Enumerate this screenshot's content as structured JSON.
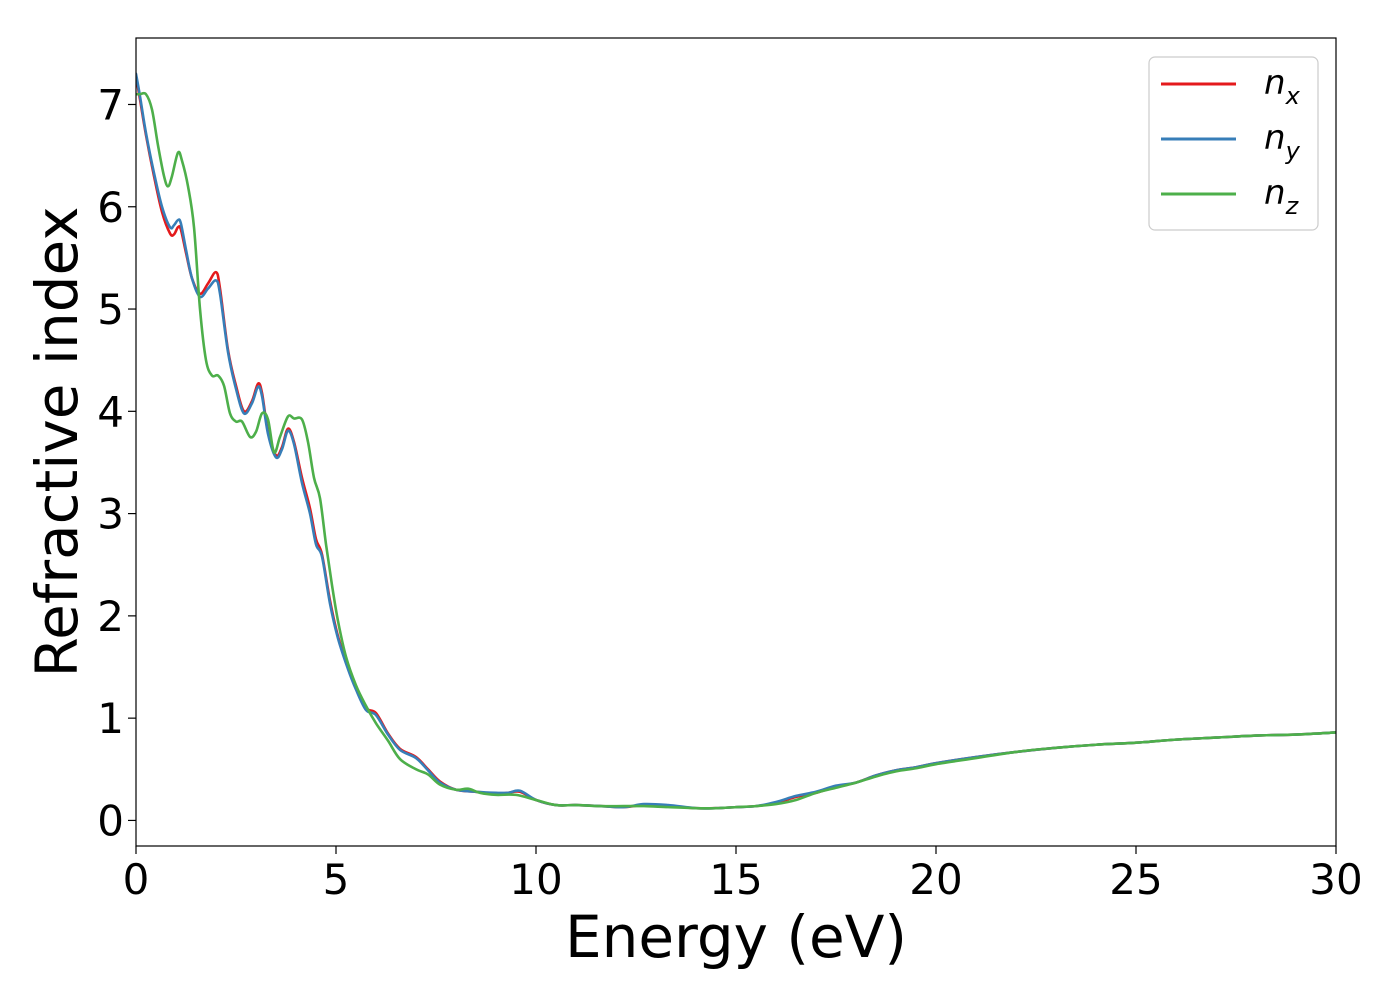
{
  "chart_data": {
    "type": "line",
    "title": "",
    "xlabel": "Energy (eV)",
    "ylabel": "Refractive index",
    "xlim": [
      0,
      30
    ],
    "ylim": [
      -0.25,
      7.65
    ],
    "xticks": [
      0,
      5,
      10,
      15,
      20,
      25,
      30
    ],
    "yticks": [
      0,
      1,
      2,
      3,
      4,
      5,
      6,
      7
    ],
    "grid": false,
    "legend_position": "top-right",
    "series": [
      {
        "name": "n_x",
        "label_base": "n",
        "label_sub": "x",
        "color": "#e41a1c",
        "points": [
          [
            0,
            7.28
          ],
          [
            0.1,
            7.05
          ],
          [
            0.25,
            6.7
          ],
          [
            0.45,
            6.3
          ],
          [
            0.65,
            5.95
          ],
          [
            0.85,
            5.74
          ],
          [
            0.95,
            5.73
          ],
          [
            1.05,
            5.8
          ],
          [
            1.12,
            5.78
          ],
          [
            1.25,
            5.55
          ],
          [
            1.4,
            5.3
          ],
          [
            1.6,
            5.15
          ],
          [
            1.8,
            5.25
          ],
          [
            2.0,
            5.36
          ],
          [
            2.1,
            5.2
          ],
          [
            2.3,
            4.6
          ],
          [
            2.5,
            4.25
          ],
          [
            2.7,
            4.0
          ],
          [
            2.9,
            4.1
          ],
          [
            3.05,
            4.27
          ],
          [
            3.15,
            4.18
          ],
          [
            3.3,
            3.8
          ],
          [
            3.5,
            3.57
          ],
          [
            3.65,
            3.65
          ],
          [
            3.8,
            3.83
          ],
          [
            3.95,
            3.7
          ],
          [
            4.15,
            3.35
          ],
          [
            4.35,
            3.05
          ],
          [
            4.5,
            2.75
          ],
          [
            4.65,
            2.6
          ],
          [
            4.85,
            2.15
          ],
          [
            5.05,
            1.8
          ],
          [
            5.3,
            1.5
          ],
          [
            5.5,
            1.3
          ],
          [
            5.75,
            1.1
          ],
          [
            6.0,
            1.05
          ],
          [
            6.3,
            0.85
          ],
          [
            6.6,
            0.7
          ],
          [
            7.0,
            0.62
          ],
          [
            7.3,
            0.5
          ],
          [
            7.6,
            0.38
          ],
          [
            8.0,
            0.3
          ],
          [
            8.5,
            0.28
          ],
          [
            9.0,
            0.26
          ],
          [
            9.3,
            0.27
          ],
          [
            9.6,
            0.28
          ],
          [
            10.0,
            0.2
          ],
          [
            10.5,
            0.15
          ],
          [
            11.0,
            0.15
          ],
          [
            11.6,
            0.14
          ],
          [
            12.2,
            0.13
          ],
          [
            12.7,
            0.15
          ],
          [
            13.3,
            0.14
          ],
          [
            14.0,
            0.12
          ],
          [
            14.5,
            0.12
          ],
          [
            15.0,
            0.13
          ],
          [
            15.5,
            0.14
          ],
          [
            16.0,
            0.17
          ],
          [
            16.5,
            0.23
          ],
          [
            17.0,
            0.27
          ],
          [
            17.5,
            0.33
          ],
          [
            18.0,
            0.37
          ],
          [
            18.5,
            0.44
          ],
          [
            19.0,
            0.49
          ],
          [
            19.5,
            0.52
          ],
          [
            20.0,
            0.56
          ],
          [
            21.0,
            0.62
          ],
          [
            22.0,
            0.67
          ],
          [
            23.0,
            0.71
          ],
          [
            24.0,
            0.74
          ],
          [
            25.0,
            0.76
          ],
          [
            26.0,
            0.79
          ],
          [
            27.0,
            0.81
          ],
          [
            28.0,
            0.83
          ],
          [
            29.0,
            0.84
          ],
          [
            30.0,
            0.86
          ]
        ]
      },
      {
        "name": "n_y",
        "label_base": "n",
        "label_sub": "y",
        "color": "#377eb8",
        "points": [
          [
            0,
            7.3
          ],
          [
            0.1,
            7.08
          ],
          [
            0.25,
            6.72
          ],
          [
            0.45,
            6.33
          ],
          [
            0.65,
            6.0
          ],
          [
            0.85,
            5.8
          ],
          [
            0.95,
            5.82
          ],
          [
            1.05,
            5.87
          ],
          [
            1.12,
            5.84
          ],
          [
            1.25,
            5.58
          ],
          [
            1.4,
            5.3
          ],
          [
            1.6,
            5.12
          ],
          [
            1.8,
            5.2
          ],
          [
            2.0,
            5.28
          ],
          [
            2.1,
            5.15
          ],
          [
            2.3,
            4.58
          ],
          [
            2.5,
            4.22
          ],
          [
            2.7,
            3.98
          ],
          [
            2.9,
            4.08
          ],
          [
            3.05,
            4.24
          ],
          [
            3.15,
            4.15
          ],
          [
            3.3,
            3.78
          ],
          [
            3.5,
            3.55
          ],
          [
            3.65,
            3.63
          ],
          [
            3.8,
            3.81
          ],
          [
            3.95,
            3.68
          ],
          [
            4.15,
            3.3
          ],
          [
            4.35,
            3.0
          ],
          [
            4.5,
            2.7
          ],
          [
            4.65,
            2.58
          ],
          [
            4.85,
            2.12
          ],
          [
            5.05,
            1.78
          ],
          [
            5.3,
            1.48
          ],
          [
            5.5,
            1.28
          ],
          [
            5.75,
            1.08
          ],
          [
            6.0,
            1.03
          ],
          [
            6.3,
            0.84
          ],
          [
            6.6,
            0.69
          ],
          [
            7.0,
            0.61
          ],
          [
            7.3,
            0.49
          ],
          [
            7.6,
            0.37
          ],
          [
            8.0,
            0.3
          ],
          [
            8.5,
            0.28
          ],
          [
            9.0,
            0.27
          ],
          [
            9.3,
            0.27
          ],
          [
            9.6,
            0.29
          ],
          [
            10.0,
            0.2
          ],
          [
            10.5,
            0.15
          ],
          [
            11.0,
            0.15
          ],
          [
            11.6,
            0.14
          ],
          [
            12.2,
            0.13
          ],
          [
            12.7,
            0.16
          ],
          [
            13.3,
            0.15
          ],
          [
            14.0,
            0.12
          ],
          [
            14.5,
            0.12
          ],
          [
            15.0,
            0.13
          ],
          [
            15.5,
            0.14
          ],
          [
            16.0,
            0.18
          ],
          [
            16.5,
            0.24
          ],
          [
            17.0,
            0.28
          ],
          [
            17.5,
            0.34
          ],
          [
            18.0,
            0.37
          ],
          [
            18.5,
            0.44
          ],
          [
            19.0,
            0.49
          ],
          [
            19.5,
            0.52
          ],
          [
            20.0,
            0.56
          ],
          [
            21.0,
            0.62
          ],
          [
            22.0,
            0.67
          ],
          [
            23.0,
            0.71
          ],
          [
            24.0,
            0.74
          ],
          [
            25.0,
            0.76
          ],
          [
            26.0,
            0.79
          ],
          [
            27.0,
            0.81
          ],
          [
            28.0,
            0.83
          ],
          [
            29.0,
            0.84
          ],
          [
            30.0,
            0.86
          ]
        ]
      },
      {
        "name": "n_z",
        "label_base": "n",
        "label_sub": "z",
        "color": "#4daf4a",
        "points": [
          [
            0,
            7.1
          ],
          [
            0.1,
            7.1
          ],
          [
            0.25,
            7.1
          ],
          [
            0.4,
            6.95
          ],
          [
            0.55,
            6.6
          ],
          [
            0.7,
            6.3
          ],
          [
            0.8,
            6.2
          ],
          [
            0.9,
            6.3
          ],
          [
            1.05,
            6.53
          ],
          [
            1.15,
            6.45
          ],
          [
            1.3,
            6.2
          ],
          [
            1.45,
            5.8
          ],
          [
            1.6,
            5.0
          ],
          [
            1.75,
            4.5
          ],
          [
            1.9,
            4.35
          ],
          [
            2.05,
            4.35
          ],
          [
            2.2,
            4.25
          ],
          [
            2.35,
            3.98
          ],
          [
            2.5,
            3.9
          ],
          [
            2.65,
            3.9
          ],
          [
            2.85,
            3.75
          ],
          [
            3.0,
            3.8
          ],
          [
            3.15,
            3.98
          ],
          [
            3.3,
            3.92
          ],
          [
            3.45,
            3.6
          ],
          [
            3.6,
            3.75
          ],
          [
            3.8,
            3.95
          ],
          [
            3.95,
            3.93
          ],
          [
            4.15,
            3.92
          ],
          [
            4.3,
            3.7
          ],
          [
            4.45,
            3.35
          ],
          [
            4.6,
            3.15
          ],
          [
            4.75,
            2.7
          ],
          [
            4.9,
            2.3
          ],
          [
            5.05,
            1.95
          ],
          [
            5.25,
            1.6
          ],
          [
            5.5,
            1.32
          ],
          [
            5.75,
            1.12
          ],
          [
            6.0,
            0.95
          ],
          [
            6.3,
            0.78
          ],
          [
            6.6,
            0.6
          ],
          [
            7.0,
            0.5
          ],
          [
            7.3,
            0.45
          ],
          [
            7.6,
            0.35
          ],
          [
            8.0,
            0.3
          ],
          [
            8.3,
            0.31
          ],
          [
            8.6,
            0.27
          ],
          [
            9.0,
            0.25
          ],
          [
            9.5,
            0.25
          ],
          [
            10.0,
            0.2
          ],
          [
            10.5,
            0.15
          ],
          [
            11.0,
            0.15
          ],
          [
            11.6,
            0.14
          ],
          [
            12.2,
            0.14
          ],
          [
            12.7,
            0.14
          ],
          [
            13.3,
            0.13
          ],
          [
            14.0,
            0.12
          ],
          [
            14.5,
            0.12
          ],
          [
            15.0,
            0.13
          ],
          [
            15.5,
            0.14
          ],
          [
            16.0,
            0.16
          ],
          [
            16.5,
            0.2
          ],
          [
            17.0,
            0.27
          ],
          [
            17.5,
            0.32
          ],
          [
            18.0,
            0.37
          ],
          [
            18.5,
            0.43
          ],
          [
            19.0,
            0.48
          ],
          [
            19.5,
            0.51
          ],
          [
            20.0,
            0.55
          ],
          [
            21.0,
            0.61
          ],
          [
            22.0,
            0.67
          ],
          [
            23.0,
            0.71
          ],
          [
            24.0,
            0.74
          ],
          [
            25.0,
            0.76
          ],
          [
            26.0,
            0.79
          ],
          [
            27.0,
            0.81
          ],
          [
            28.0,
            0.83
          ],
          [
            29.0,
            0.84
          ],
          [
            30.0,
            0.86
          ]
        ]
      }
    ]
  }
}
